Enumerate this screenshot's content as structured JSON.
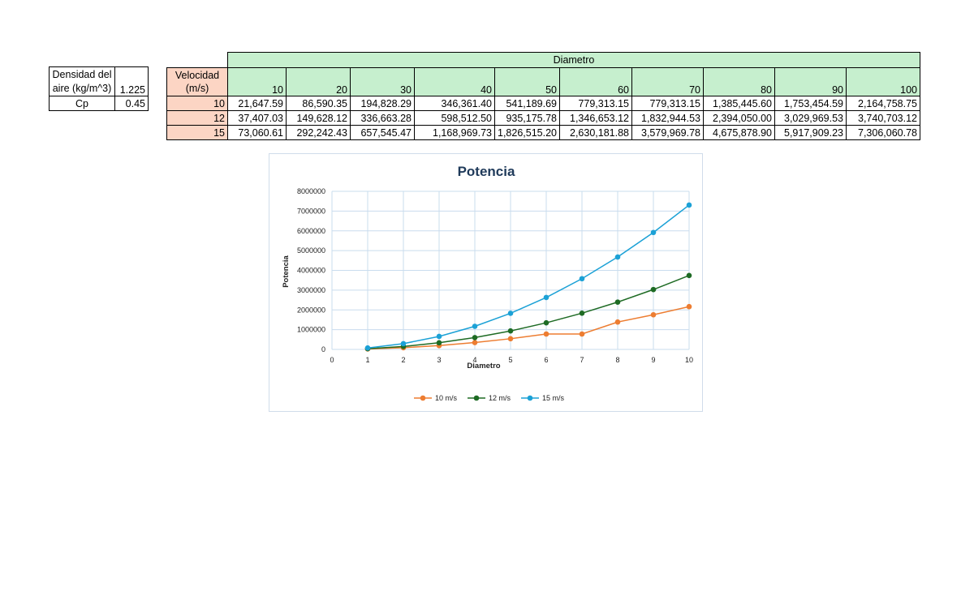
{
  "params": {
    "density_label_line1": "Densidad del",
    "density_label_line2": "aire (kg/m^3)",
    "density_value": "1.225",
    "cp_label": "Cp",
    "cp_value": "0.45"
  },
  "table": {
    "diameter_title": "Diametro",
    "velocity_label_line1": "Velocidad",
    "velocity_label_line2": "(m/s)",
    "diameters": [
      "10",
      "20",
      "30",
      "40",
      "50",
      "60",
      "70",
      "80",
      "90",
      "100"
    ],
    "rows": [
      {
        "velocity": "10",
        "values": [
          "21,647.59",
          "86,590.35",
          "194,828.29",
          "346,361.40",
          "541,189.69",
          "779,313.15",
          "779,313.15",
          "1,385,445.60",
          "1,753,454.59",
          "2,164,758.75"
        ]
      },
      {
        "velocity": "12",
        "values": [
          "37,407.03",
          "149,628.12",
          "336,663.28",
          "598,512.50",
          "935,175.78",
          "1,346,653.12",
          "1,832,944.53",
          "2,394,050.00",
          "3,029,969.53",
          "3,740,703.12"
        ]
      },
      {
        "velocity": "15",
        "values": [
          "73,060.61",
          "292,242.43",
          "657,545.47",
          "1,168,969.73",
          "1,826,515.20",
          "2,630,181.88",
          "3,579,969.78",
          "4,675,878.90",
          "5,917,909.23",
          "7,306,060.78"
        ]
      }
    ]
  },
  "chart_data": {
    "type": "line",
    "title": "Potencia",
    "xlabel": "Diametro",
    "ylabel": "Potencia",
    "xlim": [
      0,
      10
    ],
    "ylim": [
      0,
      8000000
    ],
    "x_ticks": [
      "0",
      "1",
      "2",
      "3",
      "4",
      "5",
      "6",
      "7",
      "8",
      "9",
      "10"
    ],
    "y_ticks": [
      "0",
      "1000000",
      "2000000",
      "3000000",
      "4000000",
      "5000000",
      "6000000",
      "7000000",
      "8000000"
    ],
    "x": [
      1,
      2,
      3,
      4,
      5,
      6,
      7,
      8,
      9,
      10
    ],
    "grid": true,
    "legend_position": "bottom",
    "series": [
      {
        "name": "10 m/s",
        "color": "#ed7d31",
        "values": [
          21647.59,
          86590.35,
          194828.29,
          346361.4,
          541189.69,
          779313.15,
          779313.15,
          1385445.6,
          1753454.59,
          2164758.75
        ]
      },
      {
        "name": "12 m/s",
        "color": "#1e6b24",
        "values": [
          37407.03,
          149628.12,
          336663.28,
          598512.5,
          935175.78,
          1346653.12,
          1832944.53,
          2394050.0,
          3029969.53,
          3740703.12
        ]
      },
      {
        "name": "15 m/s",
        "color": "#1ba1d6",
        "values": [
          73060.61,
          292242.43,
          657545.47,
          1168969.73,
          1826515.2,
          2630181.88,
          3579969.78,
          4675878.9,
          5917909.23,
          7306060.78
        ]
      }
    ]
  }
}
